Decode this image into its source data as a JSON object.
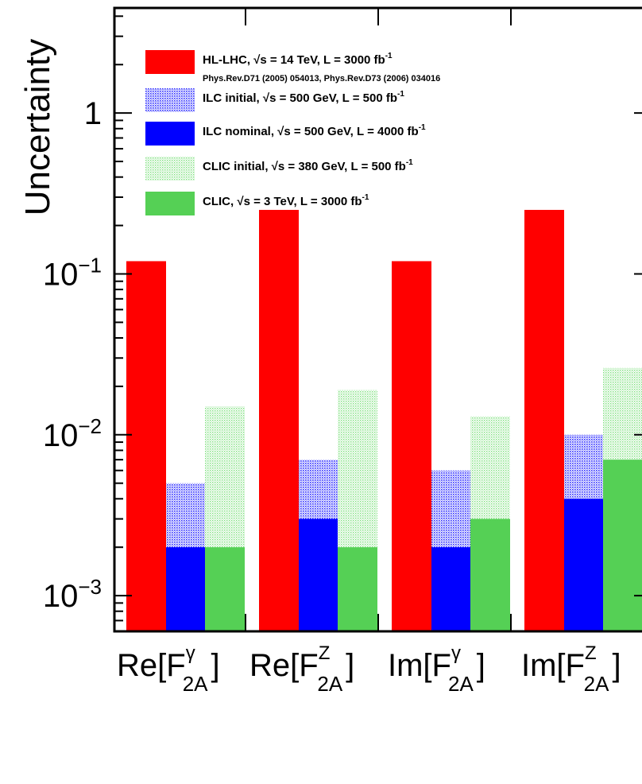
{
  "chart_data": {
    "type": "bar",
    "ylabel": "Uncertainty",
    "yscale": "log",
    "ylim": [
      0.0006,
      4.5
    ],
    "y_ticks": [
      {
        "value": 0.001,
        "base": "10",
        "exp": "−3"
      },
      {
        "value": 0.01,
        "base": "10",
        "exp": "−2"
      },
      {
        "value": 0.1,
        "base": "10",
        "exp": "−1"
      },
      {
        "value": 1,
        "base": "1",
        "exp": ""
      }
    ],
    "categories": [
      {
        "main": "Re[F",
        "sup": "γ",
        "sub": "2A",
        "close": "]"
      },
      {
        "main": "Re[F",
        "sup": "Z",
        "sub": "2A",
        "close": "]"
      },
      {
        "main": "Im[F",
        "sup": "γ",
        "sub": "2A",
        "close": "]"
      },
      {
        "main": "Im[F",
        "sup": "Z",
        "sub": "2A",
        "close": "]"
      }
    ],
    "series": [
      {
        "key": "hllhc",
        "color": "#ff0000",
        "pattern": "solid",
        "values": [
          0.12,
          0.25,
          0.12,
          0.25
        ]
      },
      {
        "key": "ilc",
        "color": "#0000ff",
        "initial_values": [
          0.005,
          0.007,
          0.006,
          0.01
        ],
        "nominal_values": [
          0.002,
          0.003,
          0.002,
          0.004
        ]
      },
      {
        "key": "clic",
        "color": "#55d055",
        "initial_values": [
          0.015,
          0.019,
          0.013,
          0.026
        ],
        "nominal_values": [
          0.002,
          0.002,
          0.003,
          0.007
        ]
      }
    ],
    "legend": {
      "position": "top-left",
      "entries": [
        {
          "label": "HL-LHC,  √s = 14 TeV, L = 3000 fb",
          "sup": "-1",
          "swatch": "#ff0000",
          "pattern": "solid",
          "note": "Phys.Rev.D71 (2005) 054013,  Phys.Rev.D73 (2006) 034016"
        },
        {
          "label": "ILC initial,  √s = 500 GeV, L = 500 fb",
          "sup": "-1",
          "swatch": "#0000ff",
          "pattern": "dots"
        },
        {
          "label": "ILC nominal,  √s = 500 GeV, L = 4000 fb",
          "sup": "-1",
          "swatch": "#0000ff",
          "pattern": "solid"
        },
        {
          "label": "CLIC initial,  √s = 380 GeV, L = 500 fb",
          "sup": "-1",
          "swatch": "#55d055",
          "pattern": "dots"
        },
        {
          "label": "CLIC,  √s = 3 TeV, L = 3000 fb",
          "sup": "-1",
          "swatch": "#55d055",
          "pattern": "solid"
        }
      ]
    }
  }
}
